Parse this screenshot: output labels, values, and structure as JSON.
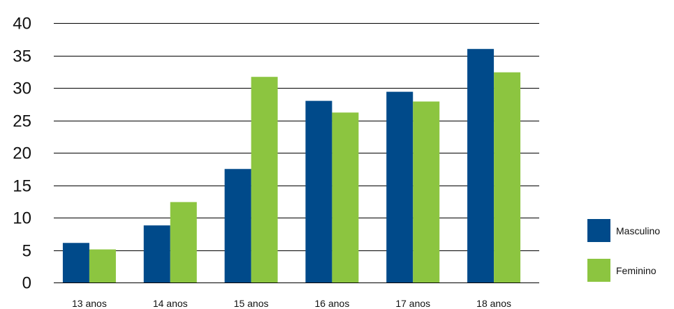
{
  "chart_data": {
    "type": "bar",
    "title": "",
    "xlabel": "",
    "ylabel": "",
    "categories": [
      "13 anos",
      "14 anos",
      "15 anos",
      "16 anos",
      "17 anos",
      "18 anos"
    ],
    "series": [
      {
        "name": "Masculino",
        "color": "#004a8a",
        "values": [
          6.1,
          8.8,
          17.5,
          28.0,
          29.4,
          36.0
        ]
      },
      {
        "name": "Feminino",
        "color": "#8cc540",
        "values": [
          5.1,
          12.4,
          31.7,
          26.2,
          27.9,
          32.4
        ]
      }
    ],
    "ylim": [
      0,
      40
    ],
    "yticks": [
      0,
      5,
      10,
      15,
      20,
      25,
      30,
      35,
      40
    ],
    "grid": true,
    "legend_position": "right"
  }
}
